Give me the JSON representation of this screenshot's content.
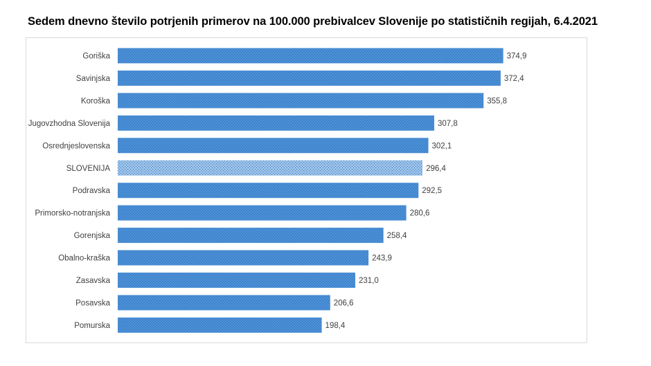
{
  "title": "Sedem dnevno število potrjenih primerov na 100.000 prebivalcev Slovenije po statističnih regijah, 6.4.2021",
  "colors": {
    "bar": "#4a8fd6",
    "bar_pattern_dot": "#2f6fb5",
    "highlight_bar": "#9cc2e8",
    "highlight_pattern_dot": "#3a78bf",
    "text": "#404040"
  },
  "chart_data": {
    "type": "bar",
    "orientation": "horizontal",
    "categories": [
      "Goriška",
      "Savinjska",
      "Koroška",
      "Jugovzhodna Slovenija",
      "Osrednjeslovenska",
      "SLOVENIJA",
      "Podravska",
      "Primorsko-notranjska",
      "Gorenjska",
      "Obalno-kraška",
      "Zasavska",
      "Posavska",
      "Pomurska"
    ],
    "values": [
      374.9,
      372.4,
      355.8,
      307.8,
      302.1,
      296.4,
      292.5,
      280.6,
      258.4,
      243.9,
      231.0,
      206.6,
      198.4
    ],
    "value_labels": [
      "374,9",
      "372,4",
      "355,8",
      "307,8",
      "302,1",
      "296,4",
      "292,5",
      "280,6",
      "258,4",
      "243,9",
      "231,0",
      "206,6",
      "198,4"
    ],
    "highlight_category": "SLOVENIJA",
    "xlim": [
      0,
      400
    ],
    "grid": false,
    "legend": "none",
    "axis_labels_visible": false
  }
}
